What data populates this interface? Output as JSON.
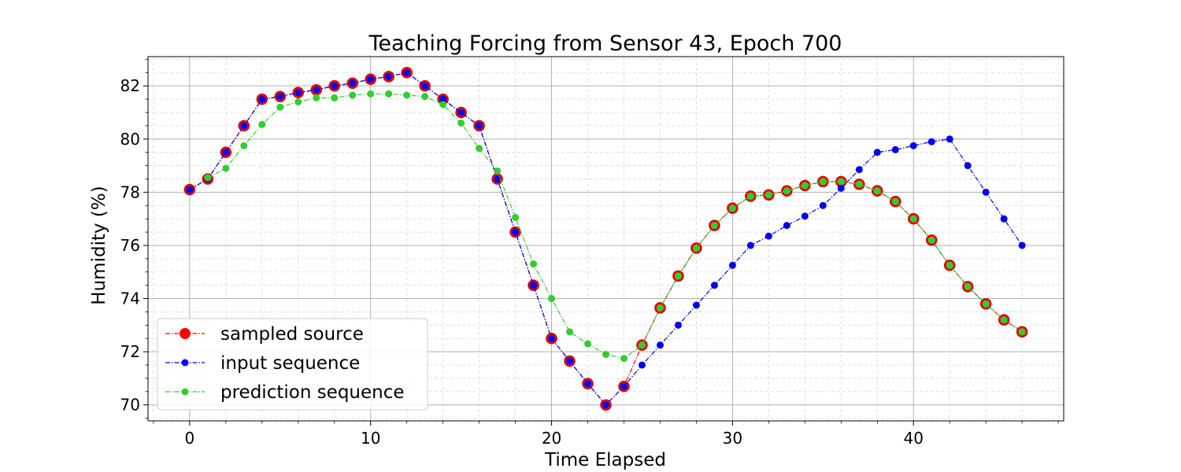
{
  "chart_data": {
    "type": "line",
    "title": "Teaching Forcing from Sensor 43, Epoch 700",
    "xlabel": "Time Elapsed",
    "ylabel": "Humidity (%)",
    "xlim": [
      -2.3,
      48.3
    ],
    "ylim": [
      69.4,
      83.1
    ],
    "xticks": [
      0,
      10,
      20,
      30,
      40
    ],
    "yticks": [
      70,
      72,
      74,
      76,
      78,
      80,
      82
    ],
    "grid": true,
    "legend_position": "lower-left",
    "series": [
      {
        "name": "sampled source",
        "color": "#ff0000",
        "marker_face": "#ff0000",
        "x": [
          0,
          1,
          2,
          3,
          4,
          5,
          6,
          7,
          8,
          9,
          10,
          11,
          12,
          13,
          14,
          15,
          16,
          17,
          18,
          19,
          20,
          21,
          22,
          23,
          24,
          25,
          26,
          27,
          28,
          29,
          30,
          31,
          32,
          33,
          34,
          35,
          36,
          37,
          38,
          39,
          40,
          41,
          42,
          43,
          44,
          45,
          46
        ],
        "values": [
          78.1,
          78.5,
          79.5,
          80.5,
          81.5,
          81.6,
          81.75,
          81.85,
          82.0,
          82.1,
          82.25,
          82.35,
          82.5,
          82.0,
          81.5,
          81.0,
          80.5,
          78.5,
          76.5,
          74.5,
          72.5,
          71.65,
          70.8,
          70.0,
          70.7,
          72.25,
          73.65,
          74.85,
          75.9,
          76.75,
          77.4,
          77.85,
          77.9,
          78.05,
          78.25,
          78.4,
          78.4,
          78.3,
          78.05,
          77.65,
          77.0,
          76.2,
          75.25,
          74.45,
          73.8,
          73.2,
          72.75
        ]
      },
      {
        "name": "input sequence",
        "color": "#0000ee",
        "marker_face": "#0000ee",
        "x": [
          0,
          1,
          2,
          3,
          4,
          5,
          6,
          7,
          8,
          9,
          10,
          11,
          12,
          13,
          14,
          15,
          16,
          17,
          18,
          19,
          20,
          21,
          22,
          23,
          24,
          25,
          26,
          27,
          28,
          29,
          30,
          31,
          32,
          33,
          34,
          35,
          36,
          37,
          38,
          39,
          40,
          41,
          42,
          43,
          44,
          45,
          46
        ],
        "values": [
          78.1,
          78.5,
          79.5,
          80.5,
          81.5,
          81.6,
          81.75,
          81.85,
          82.0,
          82.1,
          82.25,
          82.35,
          82.5,
          82.0,
          81.5,
          81.0,
          80.5,
          78.5,
          76.5,
          74.5,
          72.5,
          71.65,
          70.8,
          70.0,
          70.7,
          71.5,
          72.25,
          73.0,
          73.75,
          74.5,
          75.25,
          76.0,
          76.35,
          76.75,
          77.1,
          77.5,
          78.15,
          78.85,
          79.5,
          79.6,
          79.75,
          79.9,
          80.0,
          79.0,
          78.0,
          77.0,
          76.0
        ]
      },
      {
        "name": "prediction sequence",
        "color": "#33cc33",
        "marker_face": "#33cc33",
        "x": [
          1,
          2,
          3,
          4,
          5,
          6,
          7,
          8,
          9,
          10,
          11,
          12,
          13,
          14,
          15,
          16,
          17,
          18,
          19,
          20,
          21,
          22,
          23,
          24,
          25,
          26,
          27,
          28,
          29,
          30,
          31,
          32,
          33,
          34,
          35,
          36,
          37,
          38,
          39,
          40,
          41,
          42,
          43,
          44,
          45,
          46
        ],
        "values": [
          78.55,
          78.9,
          79.75,
          80.55,
          81.2,
          81.4,
          81.55,
          81.55,
          81.65,
          81.7,
          81.7,
          81.65,
          81.6,
          81.3,
          80.6,
          79.65,
          78.8,
          77.05,
          75.3,
          74.0,
          72.75,
          72.3,
          71.9,
          71.75,
          72.25,
          73.65,
          74.85,
          75.9,
          76.75,
          77.4,
          77.85,
          77.9,
          78.05,
          78.25,
          78.4,
          78.4,
          78.3,
          78.05,
          77.65,
          77.0,
          76.2,
          75.25,
          74.45,
          73.8,
          73.2,
          72.75
        ]
      }
    ]
  }
}
